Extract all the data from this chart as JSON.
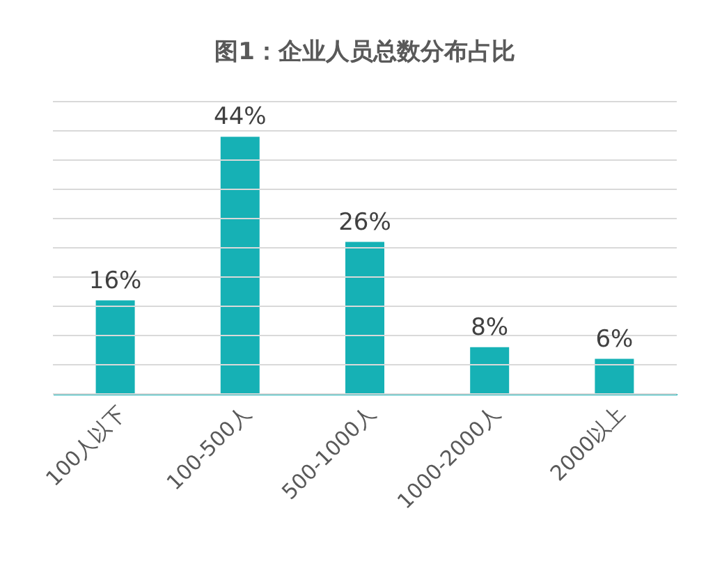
{
  "chart_data": {
    "type": "bar",
    "title": "图1：企业人员总数分布占比",
    "categories": [
      "100人以下",
      "100-500人",
      "500-1000人",
      "1000-2000人",
      "2000以上"
    ],
    "values": [
      16,
      44,
      26,
      8,
      6
    ],
    "color": "#16b1b5",
    "value_labels": [
      "16%",
      "44%",
      "26%",
      "8%",
      "6%"
    ],
    "ylim": [
      0,
      50
    ],
    "yticks": [
      {
        "value": 0,
        "label": null
      },
      {
        "value": 5,
        "label": null
      },
      {
        "value": 10,
        "label": null
      },
      {
        "value": 15,
        "label": null
      },
      {
        "value": 20,
        "label": null
      },
      {
        "value": 25,
        "label": null
      },
      {
        "value": 30,
        "label": null
      },
      {
        "value": 35,
        "label": null
      },
      {
        "value": 40,
        "label": null
      },
      {
        "value": 45,
        "label": null
      },
      {
        "value": 50,
        "label": null
      }
    ],
    "tick_labels": "x",
    "grid": "y"
  }
}
